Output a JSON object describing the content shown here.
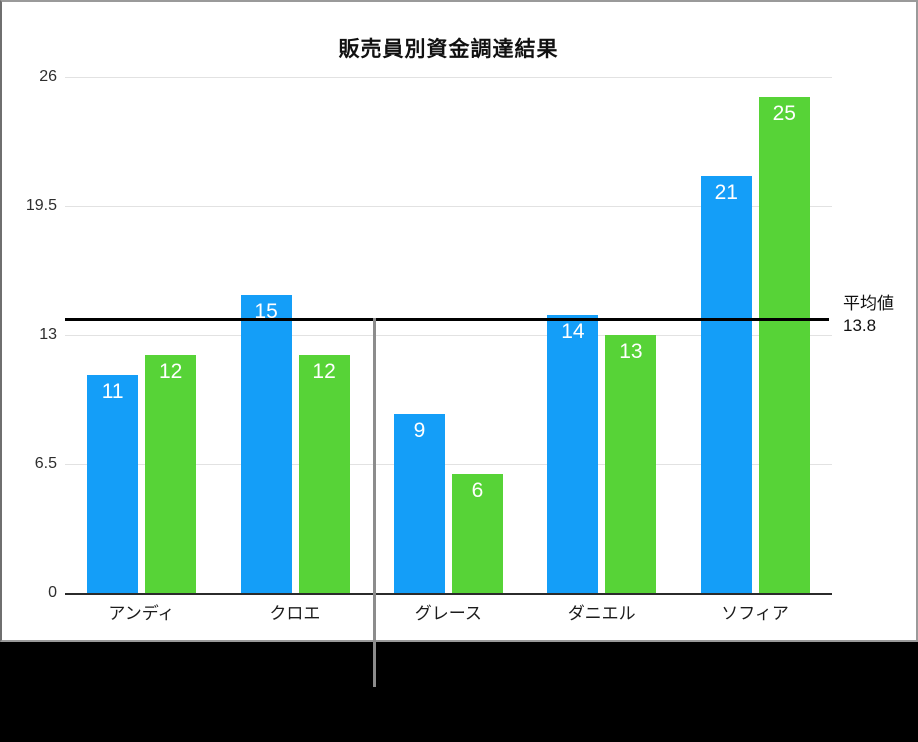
{
  "chart_data": {
    "type": "bar",
    "title": "販売員別資金調達結果",
    "categories": [
      "アンディ",
      "クロエ",
      "グレース",
      "ダニエル",
      "ソフィア"
    ],
    "series": [
      {
        "name": "blue-series",
        "color": "#149ef8",
        "values": [
          11,
          15,
          9,
          14,
          21
        ]
      },
      {
        "name": "green-series",
        "color": "#57d337",
        "values": [
          12,
          12,
          6,
          13,
          25
        ]
      }
    ],
    "yticks": [
      0,
      6.5,
      13,
      19.5,
      26
    ],
    "ytick_labels": [
      "0",
      "6.5",
      "13",
      "19.5",
      "26"
    ],
    "ylim": [
      0,
      26
    ],
    "grid": true,
    "legend_position": "none",
    "value_labels": "inside-top-white",
    "average_line": {
      "value": 13.8,
      "label": "平均値",
      "value_text": "13.8",
      "color": "#000000"
    }
  },
  "colors": {
    "bar_blue": "#149ef8",
    "bar_green": "#57d337",
    "gridline": "#e2e2e2",
    "axis": "#2b2b2b",
    "average_line": "#000000",
    "callout_line": "#8c8c8c",
    "card_border": "#9a9a9a",
    "card_background": "#ffffff",
    "page_background": "#000000"
  }
}
